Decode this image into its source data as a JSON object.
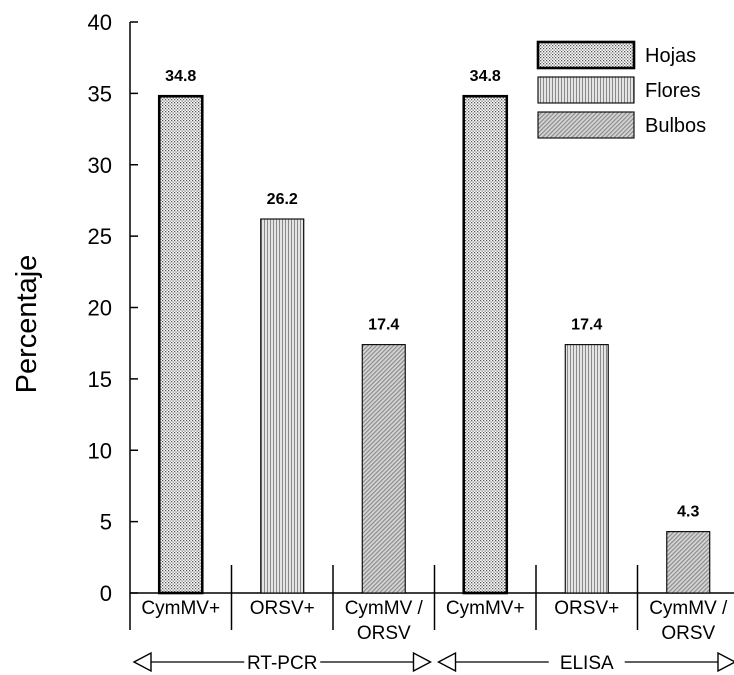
{
  "chart_data": {
    "type": "bar",
    "title": "",
    "ylabel": "Percentaje",
    "ylim": [
      0,
      40
    ],
    "yticks": [
      0,
      5,
      10,
      15,
      20,
      25,
      30,
      35,
      40
    ],
    "grid": false,
    "legend_position": "top-right",
    "series": [
      {
        "name": "Hojas",
        "pattern": "dots-fine",
        "border": "thick"
      },
      {
        "name": "Flores",
        "pattern": "vertical-lines",
        "border": "thin"
      },
      {
        "name": "Bulbos",
        "pattern": "diagonal-lines",
        "border": "thin"
      }
    ],
    "categories": [
      {
        "label": [
          "CymMV+"
        ],
        "series": "Hojas",
        "value": 34.8,
        "value_label": "34.8"
      },
      {
        "label": [
          "ORSV+"
        ],
        "series": "Flores",
        "value": 26.2,
        "value_label": "26.2"
      },
      {
        "label": [
          "CymMV /",
          "ORSV"
        ],
        "series": "Bulbos",
        "value": 17.4,
        "value_label": "17.4"
      },
      {
        "label": [
          "CymMV+"
        ],
        "series": "Hojas",
        "value": 34.8,
        "value_label": "34.8"
      },
      {
        "label": [
          "ORSV+"
        ],
        "series": "Flores",
        "value": 17.4,
        "value_label": "17.4"
      },
      {
        "label": [
          "CymMV /",
          "ORSV"
        ],
        "series": "Bulbos",
        "value": 4.3,
        "value_label": "4.3"
      }
    ],
    "groups": [
      {
        "label": "RT-PCR",
        "categories": [
          0,
          1,
          2
        ]
      },
      {
        "label": "ELISA",
        "categories": [
          3,
          4,
          5
        ]
      }
    ]
  }
}
